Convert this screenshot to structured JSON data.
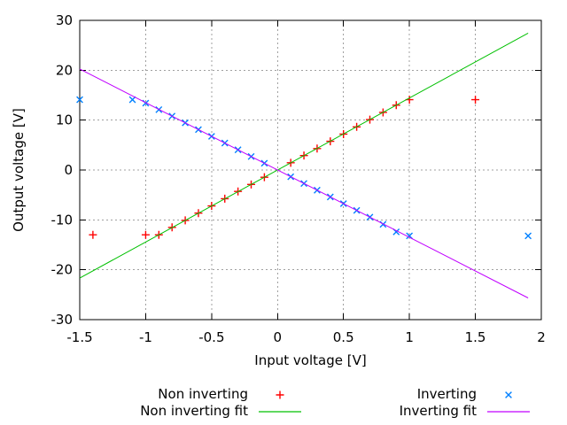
{
  "chart_data": {
    "type": "scatter",
    "title": "",
    "xlabel": "Input voltage [V]",
    "ylabel": "Output voltage [V]",
    "xlim": [
      -1.5,
      2
    ],
    "ylim": [
      -30,
      30
    ],
    "xticks": [
      -1.5,
      -1,
      -0.5,
      0,
      0.5,
      1,
      1.5,
      2
    ],
    "xtick_labels": [
      "-1.5",
      "-1",
      "-0.5",
      "0",
      "0.5",
      "1",
      "1.5",
      "2"
    ],
    "yticks": [
      -30,
      -20,
      -10,
      0,
      10,
      20,
      30
    ],
    "ytick_labels": [
      "-30",
      "-20",
      "-10",
      "0",
      "10",
      "20",
      "30"
    ],
    "grid": true,
    "legend_position": "below plot, two columns",
    "background_color": "#ffffff",
    "grid_color": "#a0a0a0",
    "axis_color": "#000000",
    "series": [
      {
        "name": "Non inverting",
        "type": "points",
        "marker": "plus",
        "color": "#ff0000",
        "points": [
          [
            -1.4,
            -13
          ],
          [
            -1,
            -13
          ],
          [
            -0.9,
            -13
          ],
          [
            -0.8,
            -11.5
          ],
          [
            -0.7,
            -10.1
          ],
          [
            -0.6,
            -8.65
          ],
          [
            -0.5,
            -7.2
          ],
          [
            -0.4,
            -5.75
          ],
          [
            -0.3,
            -4.3
          ],
          [
            -0.2,
            -2.9
          ],
          [
            -0.1,
            -1.45
          ],
          [
            0.1,
            1.45
          ],
          [
            0.2,
            2.9
          ],
          [
            0.3,
            4.3
          ],
          [
            0.4,
            5.75
          ],
          [
            0.5,
            7.2
          ],
          [
            0.6,
            8.65
          ],
          [
            0.7,
            10.1
          ],
          [
            0.8,
            11.55
          ],
          [
            0.9,
            13
          ],
          [
            1,
            14.1
          ],
          [
            1.5,
            14.1
          ]
        ]
      },
      {
        "name": "Non inverting fit",
        "type": "line",
        "color": "#00c000",
        "slope": 14.44,
        "intercept": 0,
        "x_range": [
          -1.5,
          1.9
        ],
        "points": [
          [
            -1.5,
            -21.66
          ],
          [
            1.9,
            27.44
          ]
        ]
      },
      {
        "name": "Inverting",
        "type": "points",
        "marker": "cross",
        "color": "#0080ff",
        "points": [
          [
            -1.5,
            14.1
          ],
          [
            -1.1,
            14.1
          ],
          [
            -1,
            13.4
          ],
          [
            -0.9,
            12.1
          ],
          [
            -0.8,
            10.8
          ],
          [
            -0.7,
            9.45
          ],
          [
            -0.6,
            8.1
          ],
          [
            -0.5,
            6.75
          ],
          [
            -0.4,
            5.4
          ],
          [
            -0.3,
            4.05
          ],
          [
            -0.2,
            2.7
          ],
          [
            -0.1,
            1.35
          ],
          [
            0.1,
            -1.35
          ],
          [
            0.2,
            -2.7
          ],
          [
            0.3,
            -4.05
          ],
          [
            0.4,
            -5.4
          ],
          [
            0.5,
            -6.75
          ],
          [
            0.6,
            -8.1
          ],
          [
            0.7,
            -9.45
          ],
          [
            0.8,
            -10.9
          ],
          [
            0.9,
            -12.4
          ],
          [
            1,
            -13.2
          ],
          [
            1.9,
            -13.2
          ]
        ]
      },
      {
        "name": "Inverting fit",
        "type": "line",
        "color": "#c000ff",
        "slope": -13.5,
        "intercept": 0,
        "x_range": [
          -1.5,
          1.9
        ],
        "points": [
          [
            -1.5,
            20.25
          ],
          [
            1.9,
            -25.65
          ]
        ]
      }
    ]
  }
}
